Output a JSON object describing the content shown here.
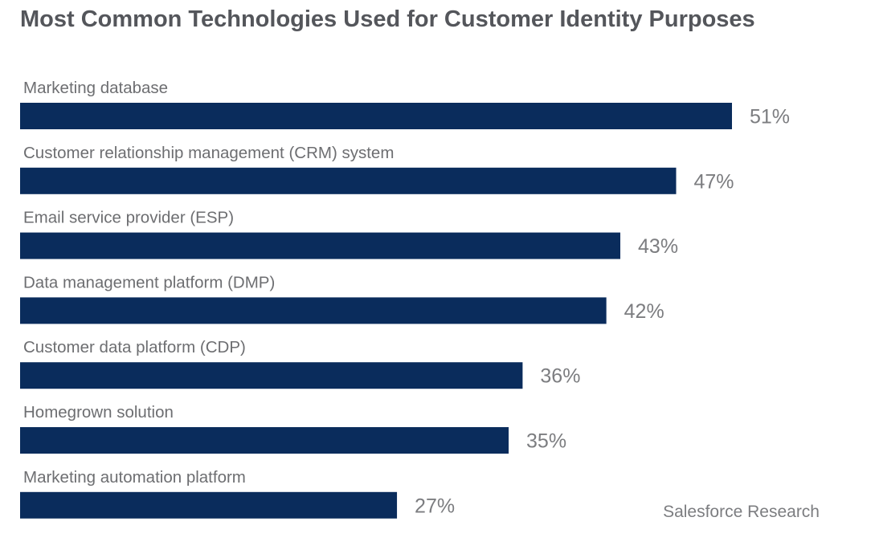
{
  "chart_data": {
    "type": "bar",
    "orientation": "horizontal",
    "title": "Most Common Technologies Used for Customer Identity Purposes",
    "categories": [
      "Marketing database",
      "Customer relationship management (CRM) system",
      "Email service provider (ESP)",
      "Data management platform (DMP)",
      "Customer data platform (CDP)",
      "Homegrown solution",
      "Marketing automation platform"
    ],
    "values": [
      51,
      47,
      43,
      42,
      36,
      35,
      27
    ],
    "value_labels": [
      "51%",
      "47%",
      "43%",
      "42%",
      "36%",
      "35%",
      "27%"
    ],
    "unit": "%",
    "xlim": [
      0,
      51
    ],
    "grid": false,
    "legend": "none",
    "bar_color": "#0a2c5c",
    "source": "Salesforce Research"
  }
}
